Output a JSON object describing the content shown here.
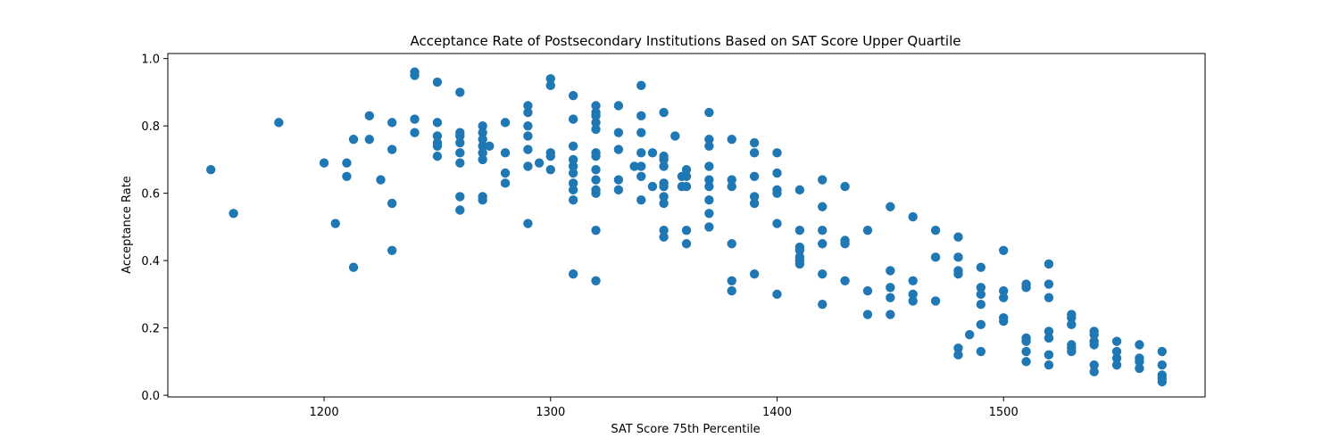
{
  "chart_data": {
    "type": "scatter",
    "title": "Acceptance Rate of Postsecondary Institutions Based on SAT Score Upper Quartile",
    "xlabel": "SAT Score 75th Percentile",
    "ylabel": "Acceptance Rate",
    "xlim": [
      1131,
      1589
    ],
    "ylim": [
      -0.005,
      1.015
    ],
    "xticks": [
      {
        "value": 1200,
        "label": "1200"
      },
      {
        "value": 1300,
        "label": "1300"
      },
      {
        "value": 1400,
        "label": "1400"
      },
      {
        "value": 1500,
        "label": "1500"
      }
    ],
    "yticks": [
      {
        "value": 0.0,
        "label": "0.0"
      },
      {
        "value": 0.2,
        "label": "0.2"
      },
      {
        "value": 0.4,
        "label": "0.4"
      },
      {
        "value": 0.6,
        "label": "0.6"
      },
      {
        "value": 0.8,
        "label": "0.8"
      },
      {
        "value": 1.0,
        "label": "1.0"
      }
    ],
    "grid": false,
    "legend": "none",
    "marker_color": "#1f77b4",
    "series": [
      {
        "points": [
          [
            1150,
            0.67
          ],
          [
            1160,
            0.54
          ],
          [
            1180,
            0.81
          ],
          [
            1200,
            0.69
          ],
          [
            1205,
            0.51
          ],
          [
            1210,
            0.69
          ],
          [
            1210,
            0.65
          ],
          [
            1213,
            0.76
          ],
          [
            1213,
            0.38
          ],
          [
            1220,
            0.83
          ],
          [
            1220,
            0.76
          ],
          [
            1225,
            0.64
          ],
          [
            1230,
            0.81
          ],
          [
            1230,
            0.73
          ],
          [
            1230,
            0.57
          ],
          [
            1230,
            0.43
          ],
          [
            1240,
            0.96
          ],
          [
            1240,
            0.95
          ],
          [
            1240,
            0.82
          ],
          [
            1240,
            0.78
          ],
          [
            1250,
            0.93
          ],
          [
            1250,
            0.81
          ],
          [
            1250,
            0.77
          ],
          [
            1250,
            0.75
          ],
          [
            1250,
            0.74
          ],
          [
            1250,
            0.71
          ],
          [
            1260,
            0.9
          ],
          [
            1260,
            0.78
          ],
          [
            1260,
            0.77
          ],
          [
            1260,
            0.75
          ],
          [
            1260,
            0.72
          ],
          [
            1260,
            0.69
          ],
          [
            1260,
            0.59
          ],
          [
            1260,
            0.55
          ],
          [
            1270,
            0.8
          ],
          [
            1270,
            0.78
          ],
          [
            1270,
            0.76
          ],
          [
            1270,
            0.74
          ],
          [
            1270,
            0.72
          ],
          [
            1270,
            0.7
          ],
          [
            1270,
            0.59
          ],
          [
            1270,
            0.58
          ],
          [
            1273,
            0.74
          ],
          [
            1280,
            0.81
          ],
          [
            1280,
            0.72
          ],
          [
            1280,
            0.66
          ],
          [
            1280,
            0.63
          ],
          [
            1290,
            0.86
          ],
          [
            1290,
            0.84
          ],
          [
            1290,
            0.8
          ],
          [
            1290,
            0.77
          ],
          [
            1290,
            0.73
          ],
          [
            1290,
            0.68
          ],
          [
            1290,
            0.51
          ],
          [
            1295,
            0.69
          ],
          [
            1300,
            0.94
          ],
          [
            1300,
            0.92
          ],
          [
            1300,
            0.72
          ],
          [
            1300,
            0.71
          ],
          [
            1300,
            0.67
          ],
          [
            1310,
            0.89
          ],
          [
            1310,
            0.82
          ],
          [
            1310,
            0.74
          ],
          [
            1310,
            0.7
          ],
          [
            1310,
            0.68
          ],
          [
            1310,
            0.66
          ],
          [
            1310,
            0.63
          ],
          [
            1310,
            0.61
          ],
          [
            1310,
            0.58
          ],
          [
            1310,
            0.36
          ],
          [
            1320,
            0.86
          ],
          [
            1320,
            0.84
          ],
          [
            1320,
            0.83
          ],
          [
            1320,
            0.81
          ],
          [
            1320,
            0.79
          ],
          [
            1320,
            0.72
          ],
          [
            1320,
            0.71
          ],
          [
            1320,
            0.67
          ],
          [
            1320,
            0.64
          ],
          [
            1320,
            0.61
          ],
          [
            1320,
            0.6
          ],
          [
            1320,
            0.49
          ],
          [
            1320,
            0.34
          ],
          [
            1330,
            0.86
          ],
          [
            1330,
            0.78
          ],
          [
            1330,
            0.73
          ],
          [
            1330,
            0.64
          ],
          [
            1330,
            0.61
          ],
          [
            1337,
            0.68
          ],
          [
            1340,
            0.92
          ],
          [
            1340,
            0.83
          ],
          [
            1340,
            0.78
          ],
          [
            1340,
            0.72
          ],
          [
            1340,
            0.68
          ],
          [
            1340,
            0.65
          ],
          [
            1340,
            0.58
          ],
          [
            1345,
            0.72
          ],
          [
            1345,
            0.62
          ],
          [
            1350,
            0.84
          ],
          [
            1350,
            0.71
          ],
          [
            1350,
            0.7
          ],
          [
            1350,
            0.68
          ],
          [
            1350,
            0.63
          ],
          [
            1350,
            0.62
          ],
          [
            1350,
            0.59
          ],
          [
            1350,
            0.57
          ],
          [
            1350,
            0.49
          ],
          [
            1350,
            0.47
          ],
          [
            1355,
            0.77
          ],
          [
            1358,
            0.65
          ],
          [
            1358,
            0.62
          ],
          [
            1360,
            0.67
          ],
          [
            1360,
            0.65
          ],
          [
            1360,
            0.62
          ],
          [
            1360,
            0.49
          ],
          [
            1360,
            0.45
          ],
          [
            1370,
            0.84
          ],
          [
            1370,
            0.76
          ],
          [
            1370,
            0.74
          ],
          [
            1370,
            0.68
          ],
          [
            1370,
            0.64
          ],
          [
            1370,
            0.62
          ],
          [
            1370,
            0.58
          ],
          [
            1370,
            0.54
          ],
          [
            1370,
            0.5
          ],
          [
            1380,
            0.76
          ],
          [
            1380,
            0.64
          ],
          [
            1380,
            0.62
          ],
          [
            1380,
            0.45
          ],
          [
            1380,
            0.34
          ],
          [
            1380,
            0.31
          ],
          [
            1390,
            0.75
          ],
          [
            1390,
            0.72
          ],
          [
            1390,
            0.65
          ],
          [
            1390,
            0.59
          ],
          [
            1390,
            0.57
          ],
          [
            1390,
            0.36
          ],
          [
            1400,
            0.72
          ],
          [
            1400,
            0.66
          ],
          [
            1400,
            0.61
          ],
          [
            1400,
            0.6
          ],
          [
            1400,
            0.51
          ],
          [
            1400,
            0.3
          ],
          [
            1410,
            0.61
          ],
          [
            1410,
            0.49
          ],
          [
            1410,
            0.44
          ],
          [
            1410,
            0.43
          ],
          [
            1410,
            0.41
          ],
          [
            1410,
            0.4
          ],
          [
            1410,
            0.39
          ],
          [
            1420,
            0.64
          ],
          [
            1420,
            0.56
          ],
          [
            1420,
            0.49
          ],
          [
            1420,
            0.45
          ],
          [
            1420,
            0.36
          ],
          [
            1420,
            0.27
          ],
          [
            1430,
            0.62
          ],
          [
            1430,
            0.46
          ],
          [
            1430,
            0.45
          ],
          [
            1430,
            0.34
          ],
          [
            1440,
            0.49
          ],
          [
            1440,
            0.31
          ],
          [
            1440,
            0.24
          ],
          [
            1450,
            0.56
          ],
          [
            1450,
            0.37
          ],
          [
            1450,
            0.32
          ],
          [
            1450,
            0.29
          ],
          [
            1450,
            0.24
          ],
          [
            1460,
            0.53
          ],
          [
            1460,
            0.34
          ],
          [
            1460,
            0.3
          ],
          [
            1460,
            0.28
          ],
          [
            1470,
            0.49
          ],
          [
            1470,
            0.41
          ],
          [
            1470,
            0.28
          ],
          [
            1480,
            0.47
          ],
          [
            1480,
            0.41
          ],
          [
            1480,
            0.37
          ],
          [
            1480,
            0.36
          ],
          [
            1480,
            0.14
          ],
          [
            1480,
            0.12
          ],
          [
            1485,
            0.18
          ],
          [
            1490,
            0.38
          ],
          [
            1490,
            0.32
          ],
          [
            1490,
            0.3
          ],
          [
            1490,
            0.27
          ],
          [
            1490,
            0.21
          ],
          [
            1490,
            0.13
          ],
          [
            1500,
            0.43
          ],
          [
            1500,
            0.31
          ],
          [
            1500,
            0.29
          ],
          [
            1500,
            0.23
          ],
          [
            1500,
            0.22
          ],
          [
            1510,
            0.33
          ],
          [
            1510,
            0.32
          ],
          [
            1510,
            0.17
          ],
          [
            1510,
            0.16
          ],
          [
            1510,
            0.13
          ],
          [
            1510,
            0.1
          ],
          [
            1520,
            0.39
          ],
          [
            1520,
            0.33
          ],
          [
            1520,
            0.29
          ],
          [
            1520,
            0.19
          ],
          [
            1520,
            0.17
          ],
          [
            1520,
            0.12
          ],
          [
            1520,
            0.09
          ],
          [
            1530,
            0.24
          ],
          [
            1530,
            0.23
          ],
          [
            1530,
            0.21
          ],
          [
            1530,
            0.15
          ],
          [
            1530,
            0.14
          ],
          [
            1530,
            0.13
          ],
          [
            1540,
            0.19
          ],
          [
            1540,
            0.18
          ],
          [
            1540,
            0.16
          ],
          [
            1540,
            0.15
          ],
          [
            1540,
            0.09
          ],
          [
            1540,
            0.07
          ],
          [
            1550,
            0.16
          ],
          [
            1550,
            0.13
          ],
          [
            1550,
            0.11
          ],
          [
            1550,
            0.09
          ],
          [
            1560,
            0.15
          ],
          [
            1560,
            0.11
          ],
          [
            1560,
            0.1
          ],
          [
            1560,
            0.08
          ],
          [
            1570,
            0.13
          ],
          [
            1570,
            0.09
          ],
          [
            1570,
            0.06
          ],
          [
            1570,
            0.05
          ],
          [
            1570,
            0.04
          ]
        ]
      }
    ]
  }
}
